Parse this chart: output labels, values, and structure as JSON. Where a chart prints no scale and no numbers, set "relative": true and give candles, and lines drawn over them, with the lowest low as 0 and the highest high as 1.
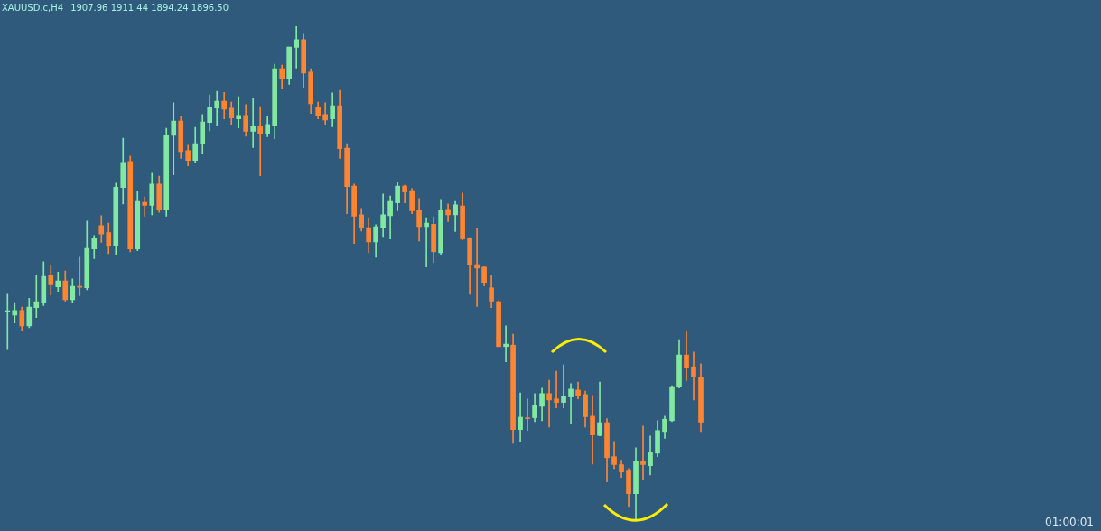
{
  "chart_data": {
    "type": "candlestick",
    "title": "XAUUSD.c,H4",
    "subtitle": "1907.96 1911.44 1894.24 1896.50",
    "relative": true,
    "annotations": [
      "01:00:01"
    ],
    "categories": [
      null,
      null,
      null,
      null,
      null,
      null,
      null,
      null,
      null,
      null,
      null,
      null,
      null,
      null,
      null,
      null,
      null,
      null,
      null,
      null,
      null,
      null,
      null,
      null,
      null,
      null,
      null,
      null,
      null,
      null,
      null,
      null,
      null,
      null,
      null,
      null,
      null,
      null,
      null,
      null,
      null,
      null,
      null,
      null,
      null,
      null,
      null,
      null,
      null,
      null,
      null,
      null,
      null,
      null,
      null,
      null,
      null,
      null,
      null,
      null,
      null,
      null,
      null,
      null,
      null,
      null,
      null,
      null,
      null,
      null,
      null,
      null,
      null,
      null,
      null,
      null,
      null,
      null,
      null,
      null,
      null,
      null,
      null,
      null,
      null,
      null,
      null,
      null,
      null,
      null,
      null,
      null,
      null,
      null,
      null,
      null,
      null
    ],
    "ohlc": [
      [
        0.422,
        0.457,
        0.345,
        0.422
      ],
      [
        0.415,
        0.44,
        0.399,
        0.424
      ],
      [
        0.424,
        0.431,
        0.384,
        0.393
      ],
      [
        0.393,
        0.449,
        0.389,
        0.431
      ],
      [
        0.43,
        0.495,
        0.41,
        0.442
      ],
      [
        0.441,
        0.523,
        0.434,
        0.493
      ],
      [
        0.495,
        0.515,
        0.455,
        0.476
      ],
      [
        0.472,
        0.502,
        0.463,
        0.484
      ],
      [
        0.484,
        0.504,
        0.443,
        0.446
      ],
      [
        0.446,
        0.488,
        0.441,
        0.473
      ],
      [
        0.472,
        0.532,
        0.454,
        0.471
      ],
      [
        0.47,
        0.605,
        0.466,
        0.55
      ],
      [
        0.549,
        0.576,
        0.529,
        0.57
      ],
      [
        0.596,
        0.616,
        0.562,
        0.579
      ],
      [
        0.582,
        0.601,
        0.539,
        0.556
      ],
      [
        0.556,
        0.682,
        0.538,
        0.674
      ],
      [
        0.673,
        0.773,
        0.64,
        0.724
      ],
      [
        0.726,
        0.737,
        0.543,
        0.549
      ],
      [
        0.549,
        0.665,
        0.545,
        0.645
      ],
      [
        0.643,
        0.654,
        0.615,
        0.637
      ],
      [
        0.637,
        0.702,
        0.618,
        0.68
      ],
      [
        0.68,
        0.696,
        0.623,
        0.629
      ],
      [
        0.629,
        0.793,
        0.615,
        0.78
      ],
      [
        0.779,
        0.845,
        0.699,
        0.808
      ],
      [
        0.808,
        0.817,
        0.732,
        0.746
      ],
      [
        0.748,
        0.759,
        0.717,
        0.728
      ],
      [
        0.728,
        0.795,
        0.723,
        0.762
      ],
      [
        0.761,
        0.821,
        0.741,
        0.806
      ],
      [
        0.805,
        0.861,
        0.788,
        0.835
      ],
      [
        0.834,
        0.868,
        0.799,
        0.848
      ],
      [
        0.848,
        0.866,
        0.812,
        0.832
      ],
      [
        0.834,
        0.846,
        0.801,
        0.814
      ],
      [
        0.812,
        0.857,
        0.794,
        0.819
      ],
      [
        0.819,
        0.841,
        0.777,
        0.787
      ],
      [
        0.787,
        0.854,
        0.754,
        0.797
      ],
      [
        0.797,
        0.837,
        0.697,
        0.783
      ],
      [
        0.783,
        0.817,
        0.776,
        0.801
      ],
      [
        0.798,
        0.923,
        0.772,
        0.914
      ],
      [
        0.914,
        0.921,
        0.873,
        0.893
      ],
      [
        0.893,
        0.958,
        0.882,
        0.958
      ],
      [
        0.957,
        1,
        0.915,
        0.973
      ],
      [
        0.973,
        0.984,
        0.876,
        0.905
      ],
      [
        0.907,
        0.914,
        0.823,
        0.843
      ],
      [
        0.835,
        0.846,
        0.812,
        0.819
      ],
      [
        0.821,
        0.845,
        0.801,
        0.81
      ],
      [
        0.812,
        0.865,
        0.796,
        0.839
      ],
      [
        0.839,
        0.87,
        0.732,
        0.752
      ],
      [
        0.753,
        0.762,
        0.62,
        0.675
      ],
      [
        0.676,
        0.68,
        0.56,
        0.615
      ],
      [
        0.618,
        0.631,
        0.585,
        0.591
      ],
      [
        0.592,
        0.612,
        0.541,
        0.563
      ],
      [
        0.563,
        0.598,
        0.532,
        0.594
      ],
      [
        0.591,
        0.66,
        0.574,
        0.618
      ],
      [
        0.616,
        0.656,
        0.569,
        0.645
      ],
      [
        0.642,
        0.685,
        0.626,
        0.676
      ],
      [
        0.676,
        0.678,
        0.642,
        0.664
      ],
      [
        0.667,
        0.671,
        0.62,
        0.626
      ],
      [
        0.627,
        0.651,
        0.565,
        0.594
      ],
      [
        0.594,
        0.612,
        0.512,
        0.601
      ],
      [
        0.599,
        0.614,
        0.521,
        0.543
      ],
      [
        0.541,
        0.649,
        0.538,
        0.627
      ],
      [
        0.629,
        0.64,
        0.604,
        0.618
      ],
      [
        0.618,
        0.645,
        0.584,
        0.638
      ],
      [
        0.636,
        0.662,
        0.567,
        0.569
      ],
      [
        0.57,
        0.572,
        0.457,
        0.516
      ],
      [
        0.517,
        0.59,
        0.432,
        0.51
      ],
      [
        0.512,
        0.513,
        0.474,
        0.481
      ],
      [
        0.47,
        0.495,
        0.43,
        0.443
      ],
      [
        0.442,
        0.444,
        0.351,
        0.351
      ],
      [
        0.351,
        0.393,
        0.32,
        0.356
      ],
      [
        0.354,
        0.376,
        0.155,
        0.183
      ],
      [
        0.183,
        0.257,
        0.159,
        0.208
      ],
      [
        0.206,
        0.245,
        0.181,
        0.205
      ],
      [
        0.207,
        0.256,
        0.199,
        0.232
      ],
      [
        0.23,
        0.267,
        0.201,
        0.256
      ],
      [
        0.256,
        0.283,
        0.188,
        0.243
      ],
      [
        0.245,
        0.301,
        0.227,
        0.238
      ],
      [
        0.238,
        0.314,
        0.227,
        0.25
      ],
      [
        0.249,
        0.276,
        0.196,
        0.265
      ],
      [
        0.263,
        0.279,
        0.245,
        0.252
      ],
      [
        0.254,
        0.261,
        0.188,
        0.209
      ],
      [
        0.21,
        0.252,
        0.113,
        0.172
      ],
      [
        0.171,
        0.279,
        0.17,
        0.197
      ],
      [
        0.197,
        0.205,
        0.077,
        0.126
      ],
      [
        0.128,
        0.159,
        0.104,
        0.112
      ],
      [
        0.112,
        0.121,
        0.086,
        0.097
      ],
      [
        0.099,
        0.104,
        0.027,
        0.053
      ],
      [
        0.053,
        0.146,
        0,
        0.118
      ],
      [
        0.118,
        0.19,
        0.082,
        0.112
      ],
      [
        0.11,
        0.17,
        0.091,
        0.137
      ],
      [
        0.135,
        0.201,
        0.128,
        0.181
      ],
      [
        0.179,
        0.21,
        0.165,
        0.204
      ],
      [
        0.201,
        0.272,
        0.199,
        0.27
      ],
      [
        0.269,
        0.365,
        0.267,
        0.334
      ],
      [
        0.334,
        0.382,
        0.282,
        0.309
      ],
      [
        0.31,
        0.34,
        0.243,
        0.289
      ],
      [
        0.288,
        0.316,
        0.179,
        0.198
      ]
    ],
    "colors": [
      "#80e8a0",
      "#80e8a0",
      "#ff8533",
      "#80e8a0",
      "#80e8a0",
      "#80e8a0",
      "#ff8533",
      "#80e8a0",
      "#ff8533",
      "#80e8a0",
      "#ff8533",
      "#80e8a0",
      "#80e8a0",
      "#ff8533",
      "#ff8533",
      "#80e8a0",
      "#80e8a0",
      "#ff8533",
      "#80e8a0",
      "#ff8533",
      "#80e8a0",
      "#ff8533",
      "#80e8a0",
      "#80e8a0",
      "#ff8533",
      "#ff8533",
      "#80e8a0",
      "#80e8a0",
      "#80e8a0",
      "#80e8a0",
      "#ff8533",
      "#ff8533",
      "#80e8a0",
      "#ff8533",
      "#80e8a0",
      "#ff8533",
      "#80e8a0",
      "#80e8a0",
      "#ff8533",
      "#80e8a0",
      "#80e8a0",
      "#ff8533",
      "#ff8533",
      "#ff8533",
      "#ff8533",
      "#80e8a0",
      "#ff8533",
      "#ff8533",
      "#ff8533",
      "#ff8533",
      "#ff8533",
      "#80e8a0",
      "#80e8a0",
      "#80e8a0",
      "#80e8a0",
      "#ff8533",
      "#ff8533",
      "#ff8533",
      "#80e8a0",
      "#ff8533",
      "#80e8a0",
      "#ff8533",
      "#80e8a0",
      "#ff8533",
      "#ff8533",
      "#ff8533",
      "#ff8533",
      "#ff8533",
      "#ff8533",
      "#80e8a0",
      "#ff8533",
      "#80e8a0",
      "#ff8533",
      "#80e8a0",
      "#80e8a0",
      "#ff8533",
      "#ff8533",
      "#80e8a0",
      "#80e8a0",
      "#ff8533",
      "#ff8533",
      "#ff8533",
      "#80e8a0",
      "#ff8533",
      "#ff8533",
      "#ff8533",
      "#ff8533",
      "#80e8a0",
      "#ff8533",
      "#80e8a0",
      "#80e8a0",
      "#80e8a0",
      "#80e8a0",
      "#80e8a0",
      "#ff8533",
      "#ff8533",
      "#ff8533"
    ]
  }
}
